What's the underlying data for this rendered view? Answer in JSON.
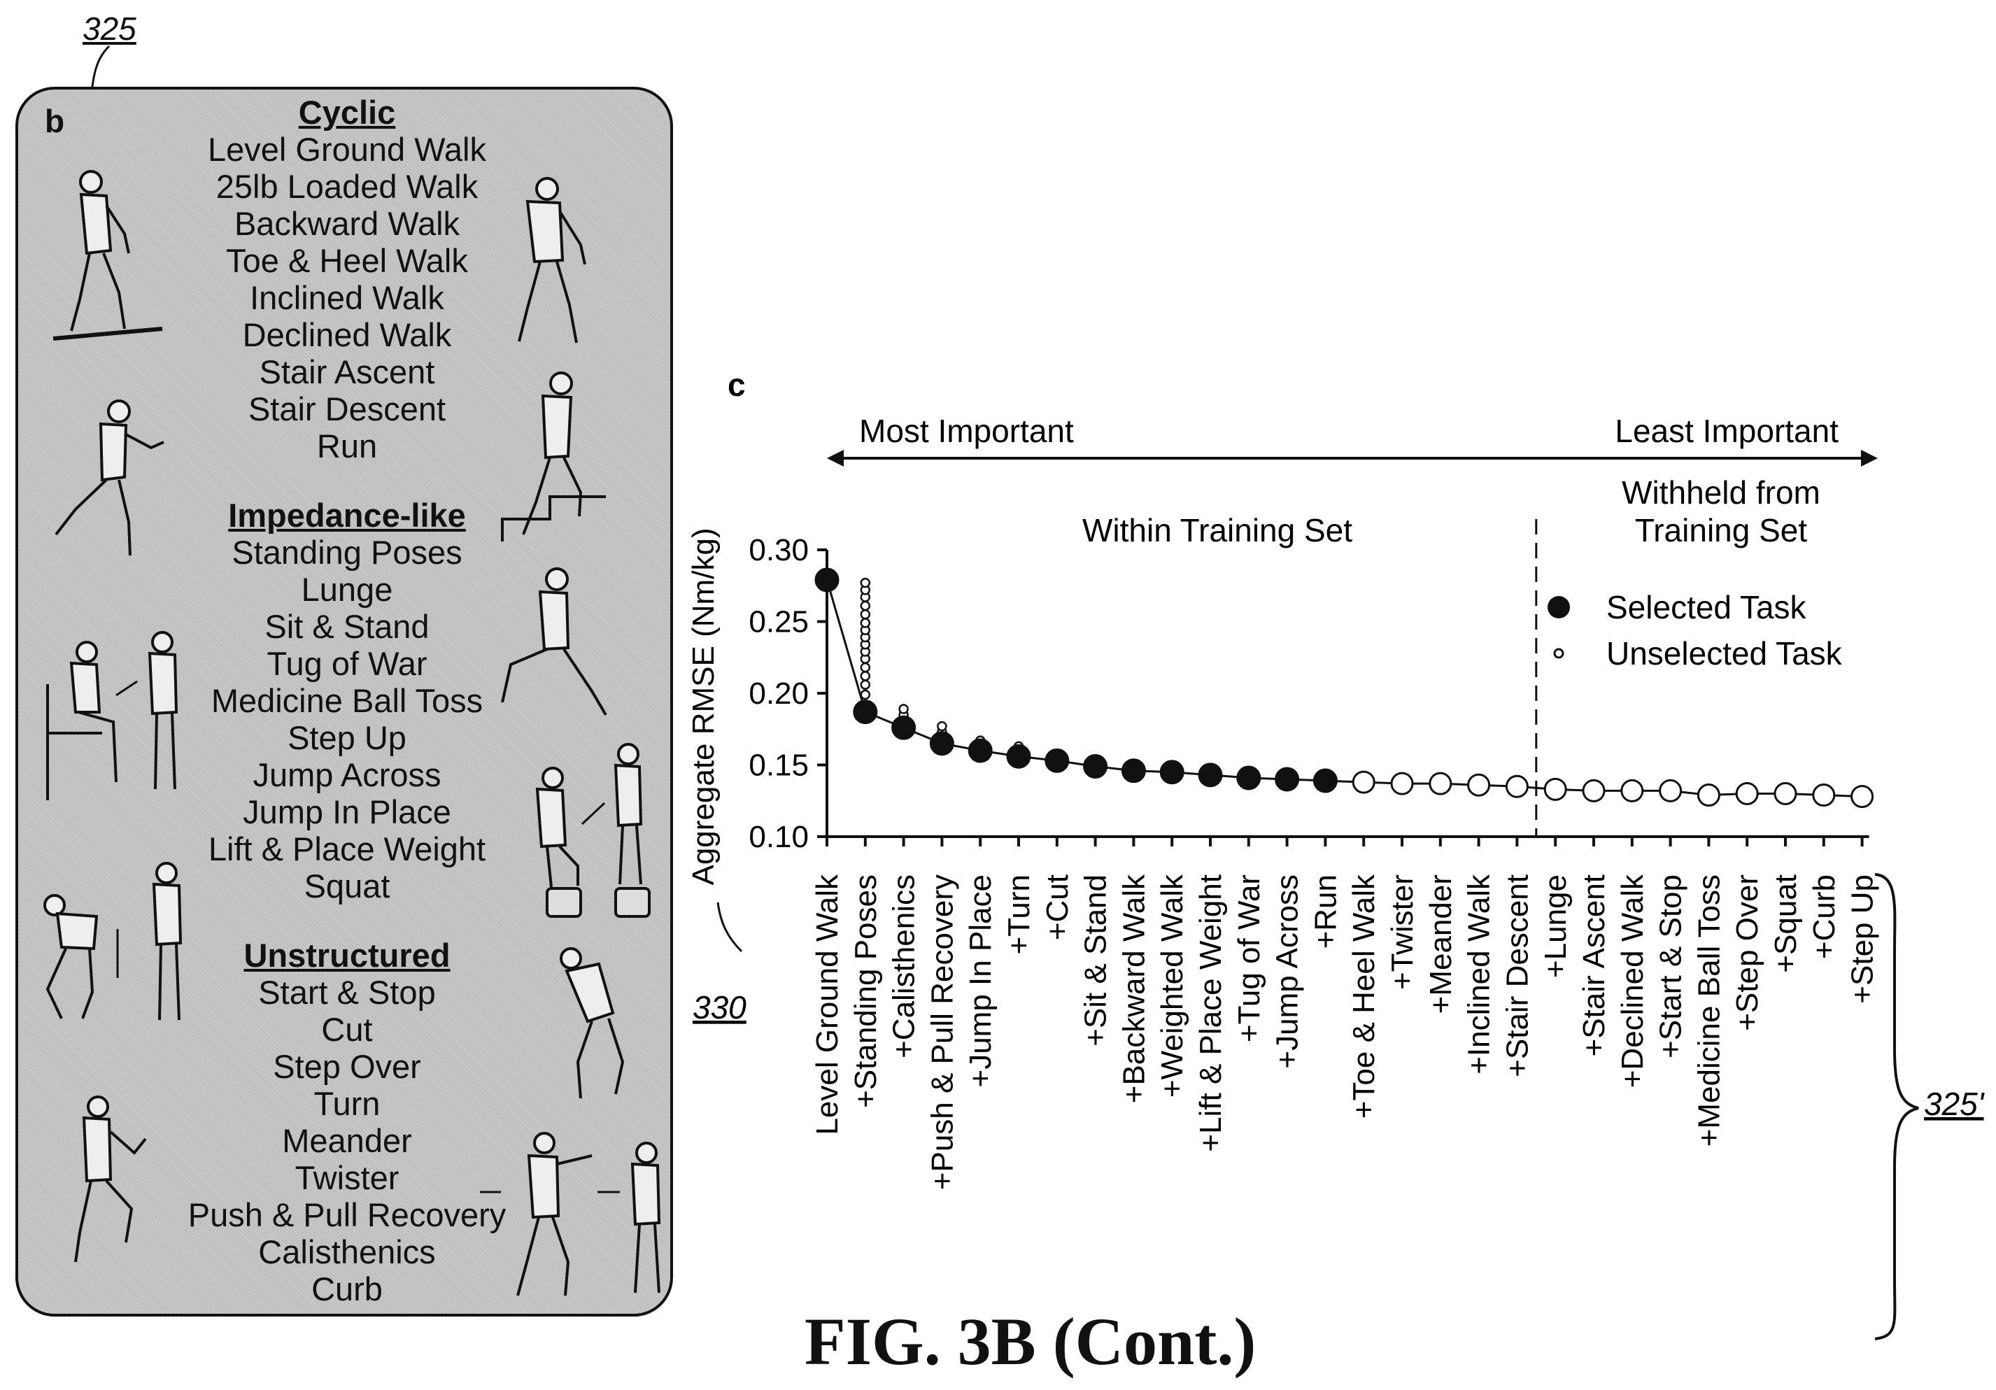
{
  "refs": {
    "panel_b": "325",
    "chart": "330",
    "tasks_axis": "325'"
  },
  "panel_b": {
    "letter": "b",
    "groups": [
      {
        "title": "Cyclic",
        "tasks": [
          "Level Ground Walk",
          "25lb Loaded Walk",
          "Backward Walk",
          "Toe & Heel Walk",
          "Inclined Walk",
          "Declined Walk",
          "Stair Ascent",
          "Stair Descent",
          "Run"
        ]
      },
      {
        "title": "Impedance-like",
        "tasks": [
          "Standing Poses",
          "Lunge",
          "Sit & Stand",
          "Tug of War",
          "Medicine Ball Toss",
          "Step Up",
          "Jump Across",
          "Jump In Place",
          "Lift & Place Weight",
          "Squat"
        ]
      },
      {
        "title": "Unstructured",
        "tasks": [
          "Start & Stop",
          "Cut",
          "Step Over",
          "Turn",
          "Meander",
          "Twister",
          "Push & Pull Recovery",
          "Calisthenics",
          "Curb"
        ]
      }
    ]
  },
  "panel_c": {
    "letter": "c",
    "most_important": "Most Important",
    "least_important": "Least Important",
    "within_label": "Within Training Set",
    "withheld_label_1": "Withheld from",
    "withheld_label_2": "Training Set",
    "legend_selected": "Selected Task",
    "legend_unselected": "Unselected Task"
  },
  "chart_data": {
    "type": "scatter",
    "ylabel": "Aggregate RMSE (Nm/kg)",
    "ylim": [
      0.1,
      0.3
    ],
    "yticks": [
      "0.10",
      "0.15",
      "0.20",
      "0.25",
      "0.30"
    ],
    "categories": [
      "Level Ground Walk",
      "+Standing Poses",
      "+Calisthenics",
      "+Push & Pull Recovery",
      "+Jump In Place",
      "+Turn",
      "+Cut",
      "+Sit & Stand",
      "+Backward Walk",
      "+Weighted Walk",
      "+Lift & Place Weight",
      "+Tug of War",
      "+Jump Across",
      "+Run",
      "+Toe & Heel Walk",
      "+Twister",
      "+Meander",
      "+Inclined Walk",
      "+Stair Descent",
      "+Lunge",
      "+Stair Ascent",
      "+Declined Walk",
      "+Start & Stop",
      "+Medicine Ball Toss",
      "+Step Over",
      "+Squat",
      "+Curb",
      "+Step Up"
    ],
    "values": [
      0.279,
      0.187,
      0.176,
      0.165,
      0.16,
      0.156,
      0.153,
      0.149,
      0.146,
      0.145,
      0.143,
      0.141,
      0.14,
      0.139,
      0.138,
      0.137,
      0.137,
      0.136,
      0.135,
      0.133,
      0.132,
      0.132,
      0.132,
      0.129,
      0.13,
      0.13,
      0.129,
      0.128
    ],
    "selected": [
      true,
      true,
      true,
      true,
      true,
      true,
      true,
      true,
      true,
      true,
      true,
      true,
      true,
      true,
      false,
      false,
      false,
      false,
      false,
      false,
      false,
      false,
      false,
      false,
      false,
      false,
      false,
      false
    ],
    "withheld_start_index": 19,
    "unselected_candidates": [
      {
        "index": 1,
        "values": [
          0.199,
          0.206,
          0.212,
          0.218,
          0.224,
          0.229,
          0.234,
          0.239,
          0.244,
          0.249,
          0.255,
          0.261,
          0.267,
          0.272,
          0.277
        ]
      },
      {
        "index": 2,
        "values": [
          0.181,
          0.185,
          0.189
        ]
      },
      {
        "index": 3,
        "values": [
          0.169,
          0.173,
          0.177
        ]
      },
      {
        "index": 4,
        "values": [
          0.163,
          0.167
        ]
      },
      {
        "index": 5,
        "values": [
          0.159,
          0.163
        ]
      }
    ]
  }
}
